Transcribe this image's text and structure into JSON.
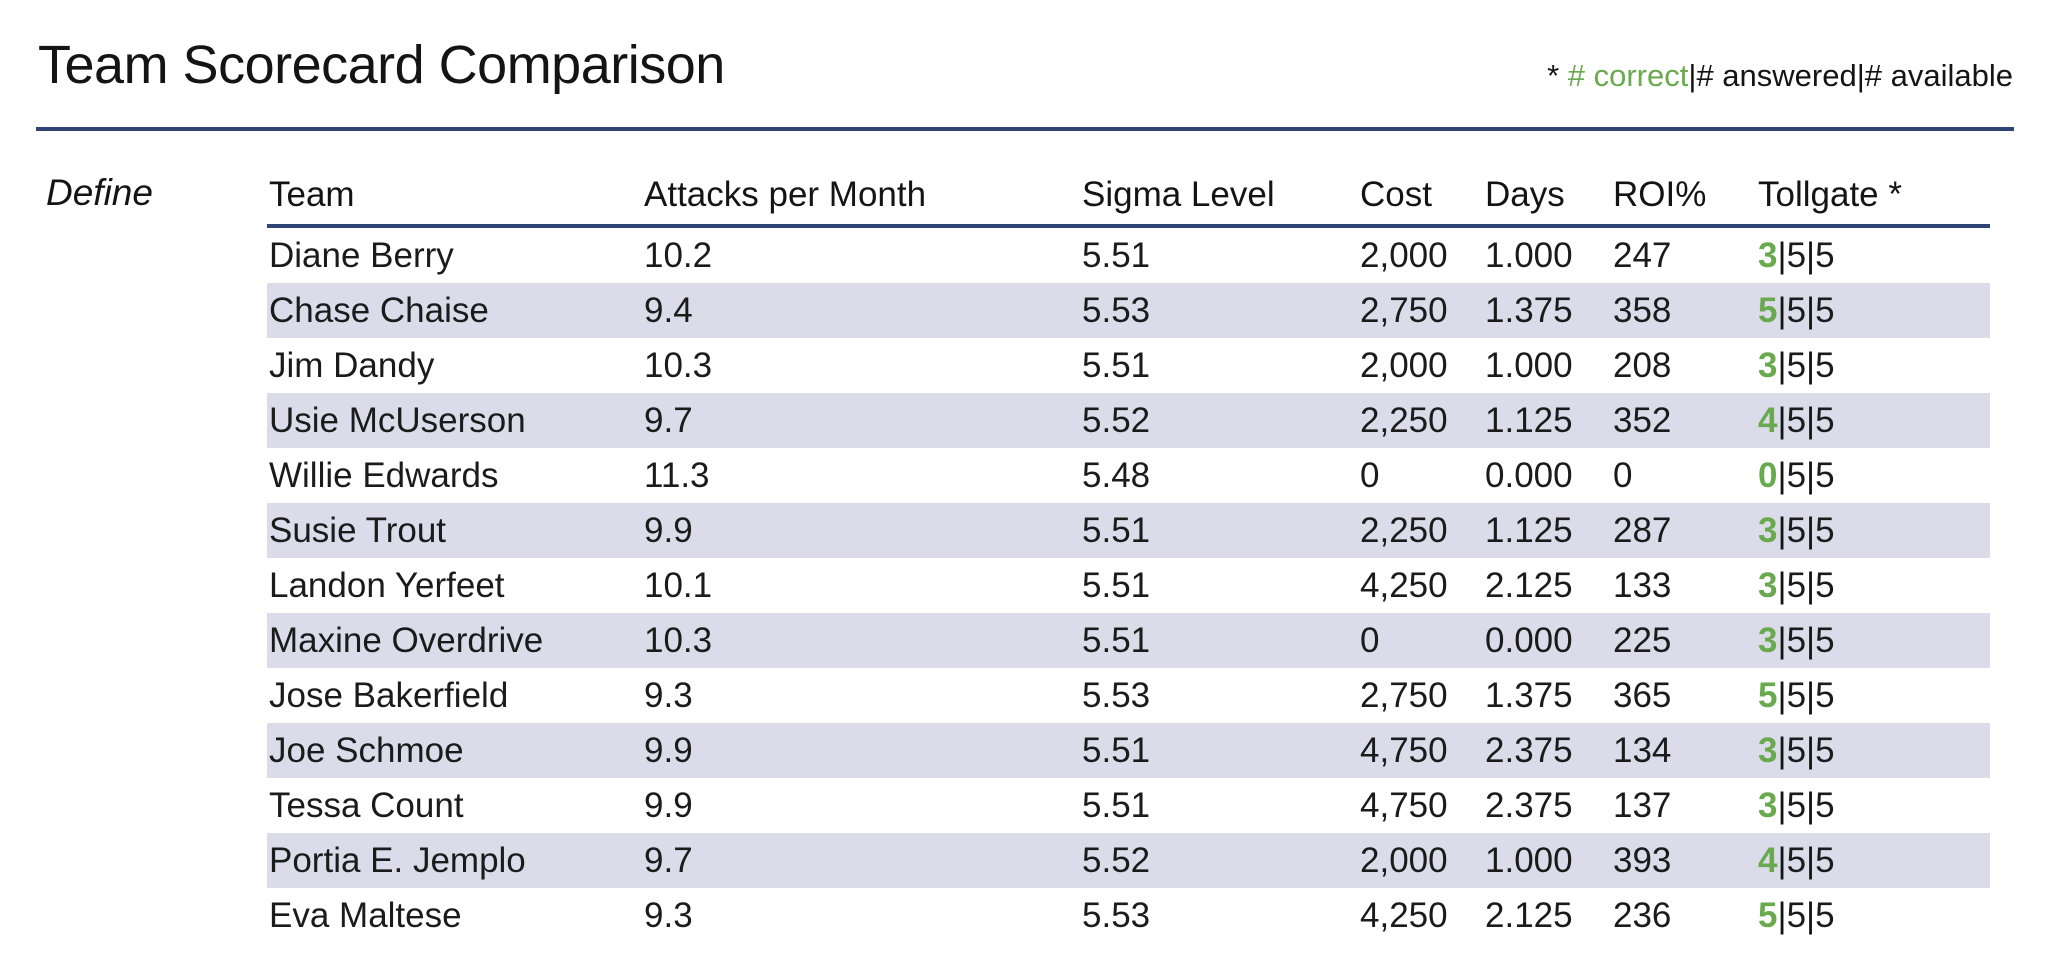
{
  "page": {
    "title": "Team Scorecard Comparison",
    "phase_label": "Define",
    "legend": {
      "prefix": "* ",
      "correct_label": "# correct",
      "separator": "|",
      "answered_label": "# answered",
      "available_label": "# available"
    }
  },
  "colors": {
    "accent_navy": "#2e4573",
    "row_alt_lavender": "#dcdbea",
    "correct_green": "#6aaa4f",
    "text": "#1b1b1b"
  },
  "table": {
    "columns": [
      "Team",
      "Attacks per Month",
      "Sigma Level",
      "Cost",
      "Days",
      "ROI%",
      "Tollgate *"
    ],
    "tollgate_separator": "|",
    "rows": [
      {
        "team": "Diane Berry",
        "attacks_per_month": "10.2",
        "sigma_level": "5.51",
        "cost": "2,000",
        "days": "1.000",
        "roi_pct": "247",
        "tollgate": {
          "correct": "3",
          "answered": "5",
          "available": "5"
        }
      },
      {
        "team": "Chase Chaise",
        "attacks_per_month": "9.4",
        "sigma_level": "5.53",
        "cost": "2,750",
        "days": "1.375",
        "roi_pct": "358",
        "tollgate": {
          "correct": "5",
          "answered": "5",
          "available": "5"
        }
      },
      {
        "team": "Jim Dandy",
        "attacks_per_month": "10.3",
        "sigma_level": "5.51",
        "cost": "2,000",
        "days": "1.000",
        "roi_pct": "208",
        "tollgate": {
          "correct": "3",
          "answered": "5",
          "available": "5"
        }
      },
      {
        "team": "Usie McUserson",
        "attacks_per_month": "9.7",
        "sigma_level": "5.52",
        "cost": "2,250",
        "days": "1.125",
        "roi_pct": "352",
        "tollgate": {
          "correct": "4",
          "answered": "5",
          "available": "5"
        }
      },
      {
        "team": "Willie Edwards",
        "attacks_per_month": "11.3",
        "sigma_level": "5.48",
        "cost": "0",
        "days": "0.000",
        "roi_pct": "0",
        "tollgate": {
          "correct": "0",
          "answered": "5",
          "available": "5"
        }
      },
      {
        "team": "Susie Trout",
        "attacks_per_month": "9.9",
        "sigma_level": "5.51",
        "cost": "2,250",
        "days": "1.125",
        "roi_pct": "287",
        "tollgate": {
          "correct": "3",
          "answered": "5",
          "available": "5"
        }
      },
      {
        "team": "Landon Yerfeet",
        "attacks_per_month": "10.1",
        "sigma_level": "5.51",
        "cost": "4,250",
        "days": "2.125",
        "roi_pct": "133",
        "tollgate": {
          "correct": "3",
          "answered": "5",
          "available": "5"
        }
      },
      {
        "team": "Maxine Overdrive",
        "attacks_per_month": "10.3",
        "sigma_level": "5.51",
        "cost": "0",
        "days": "0.000",
        "roi_pct": "225",
        "tollgate": {
          "correct": "3",
          "answered": "5",
          "available": "5"
        }
      },
      {
        "team": "Jose Bakerfield",
        "attacks_per_month": "9.3",
        "sigma_level": "5.53",
        "cost": "2,750",
        "days": "1.375",
        "roi_pct": "365",
        "tollgate": {
          "correct": "5",
          "answered": "5",
          "available": "5"
        }
      },
      {
        "team": "Joe Schmoe",
        "attacks_per_month": "9.9",
        "sigma_level": "5.51",
        "cost": "4,750",
        "days": "2.375",
        "roi_pct": "134",
        "tollgate": {
          "correct": "3",
          "answered": "5",
          "available": "5"
        }
      },
      {
        "team": "Tessa Count",
        "attacks_per_month": "9.9",
        "sigma_level": "5.51",
        "cost": "4,750",
        "days": "2.375",
        "roi_pct": "137",
        "tollgate": {
          "correct": "3",
          "answered": "5",
          "available": "5"
        }
      },
      {
        "team": "Portia E. Jemplo",
        "attacks_per_month": "9.7",
        "sigma_level": "5.52",
        "cost": "2,000",
        "days": "1.000",
        "roi_pct": "393",
        "tollgate": {
          "correct": "4",
          "answered": "5",
          "available": "5"
        }
      },
      {
        "team": "Eva Maltese",
        "attacks_per_month": "9.3",
        "sigma_level": "5.53",
        "cost": "4,250",
        "days": "2.125",
        "roi_pct": "236",
        "tollgate": {
          "correct": "5",
          "answered": "5",
          "available": "5"
        }
      }
    ]
  }
}
